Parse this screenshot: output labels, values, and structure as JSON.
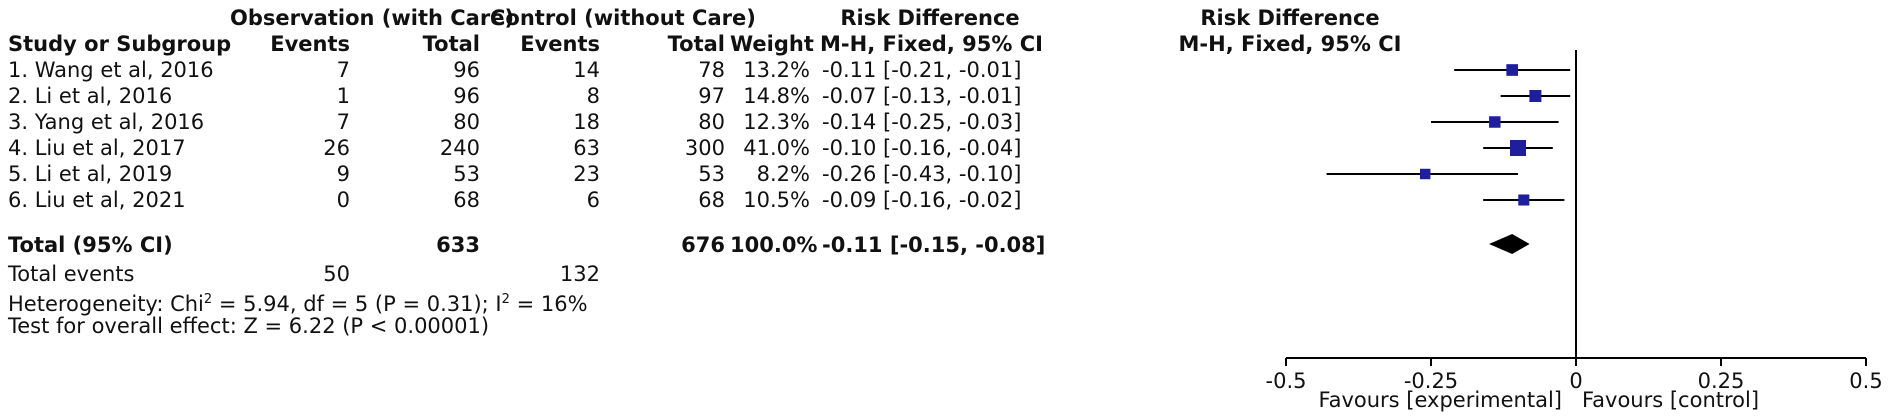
{
  "headers": {
    "study": "Study or Subgroup",
    "obs_group": "Observation (with Care)",
    "ctrl_group": "Control (without Care)",
    "events": "Events",
    "total": "Total",
    "weight": "Weight",
    "rd_title": "Risk Difference",
    "rd_method": "M-H, Fixed, 95% CI",
    "plot_title": "Risk Difference",
    "plot_method": "M-H, Fixed, 95% CI"
  },
  "studies": [
    {
      "name": "1. Wang et al, 2016",
      "obs_events": "7",
      "obs_total": "96",
      "ctrl_events": "14",
      "ctrl_total": "78",
      "weight": "13.2%",
      "ci_text": "-0.11 [-0.21, -0.01]"
    },
    {
      "name": "2. Li et al, 2016",
      "obs_events": "1",
      "obs_total": "96",
      "ctrl_events": "8",
      "ctrl_total": "97",
      "weight": "14.8%",
      "ci_text": "-0.07 [-0.13, -0.01]"
    },
    {
      "name": "3. Yang et al, 2016",
      "obs_events": "7",
      "obs_total": "80",
      "ctrl_events": "18",
      "ctrl_total": "80",
      "weight": "12.3%",
      "ci_text": "-0.14 [-0.25, -0.03]"
    },
    {
      "name": "4. Liu et al, 2017",
      "obs_events": "26",
      "obs_total": "240",
      "ctrl_events": "63",
      "ctrl_total": "300",
      "weight": "41.0%",
      "ci_text": "-0.10 [-0.16, -0.04]"
    },
    {
      "name": "5. Li et al, 2019",
      "obs_events": "9",
      "obs_total": "53",
      "ctrl_events": "23",
      "ctrl_total": "53",
      "weight": "8.2%",
      "ci_text": "-0.26 [-0.43, -0.10]"
    },
    {
      "name": "6. Liu et al, 2021",
      "obs_events": "0",
      "obs_total": "68",
      "ctrl_events": "6",
      "ctrl_total": "68",
      "weight": "10.5%",
      "ci_text": "-0.09 [-0.16, -0.02]"
    }
  ],
  "total": {
    "label": "Total (95% CI)",
    "obs_total": "633",
    "ctrl_total": "676",
    "weight": "100.0%",
    "ci_text": "-0.11 [-0.15, -0.08]"
  },
  "total_events": {
    "label": "Total events",
    "obs": "50",
    "ctrl": "132"
  },
  "heterogeneity": {
    "prefix": "Heterogeneity: Chi",
    "sup1": "2",
    "middle": " = 5.94, df = 5 (P = 0.31); I",
    "sup2": "2",
    "suffix": " = 16%"
  },
  "overall_effect": "Test for overall effect: Z = 6.22 (P < 0.00001)",
  "axis": {
    "favours_left": "Favours [experimental]",
    "favours_right": "Favours [control]"
  },
  "colors": {
    "marker": "#1f1f9e",
    "text": "#111111",
    "line": "#000000"
  },
  "chart_data": {
    "type": "forest",
    "title": "Risk Difference",
    "subtitle": "M-H, Fixed, 95% CI",
    "xlim": [
      -0.5,
      0.5
    ],
    "ticks": [
      -0.5,
      -0.25,
      0,
      0.25,
      0.5
    ],
    "tick_labels": [
      "-0.5",
      "-0.25",
      "0",
      "0.25",
      "0.5"
    ],
    "studies": [
      {
        "label": "1. Wang et al, 2016",
        "rd": -0.11,
        "lower": -0.21,
        "upper": -0.01,
        "weight": 13.2
      },
      {
        "label": "2. Li et al, 2016",
        "rd": -0.07,
        "lower": -0.13,
        "upper": -0.01,
        "weight": 14.8
      },
      {
        "label": "3. Yang et al, 2016",
        "rd": -0.14,
        "lower": -0.25,
        "upper": -0.03,
        "weight": 12.3
      },
      {
        "label": "4. Liu et al, 2017",
        "rd": -0.1,
        "lower": -0.16,
        "upper": -0.04,
        "weight": 41.0
      },
      {
        "label": "5. Li et al, 2019",
        "rd": -0.26,
        "lower": -0.43,
        "upper": -0.1,
        "weight": 8.2
      },
      {
        "label": "6. Liu et al, 2021",
        "rd": -0.09,
        "lower": -0.16,
        "upper": -0.02,
        "weight": 10.5
      }
    ],
    "pooled": {
      "rd": -0.11,
      "lower": -0.15,
      "upper": -0.08
    }
  }
}
